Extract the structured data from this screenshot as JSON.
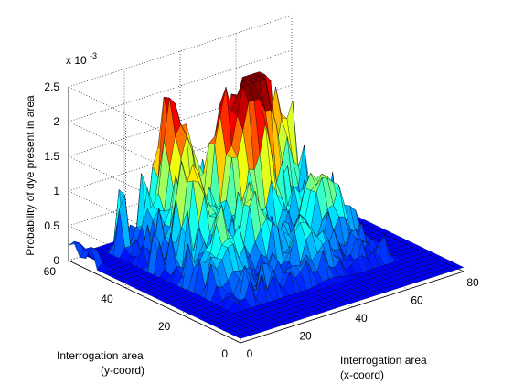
{
  "chart_data": {
    "type": "surface3d",
    "title": "",
    "zlabel": "Probability of dye present in area",
    "xlabel_line1": "Interrogation area",
    "xlabel_line2": "(x-coord)",
    "ylabel_line1": "Interrogation area",
    "ylabel_line2": "(y-coord)",
    "z_exponent_label": "x 10",
    "z_exponent_power": "-3",
    "xlim": [
      0,
      80
    ],
    "ylim": [
      0,
      60
    ],
    "zlim": [
      0,
      0.0025
    ],
    "x_ticks": [
      "0",
      "20",
      "40",
      "60",
      "80"
    ],
    "y_ticks": [
      "0",
      "20",
      "40",
      "60"
    ],
    "z_ticks": [
      "0",
      "0.5",
      "1",
      "1.5",
      "2",
      "2.5"
    ],
    "grid": true,
    "colormap": "jet",
    "surface_peaks_1e3": [
      {
        "x": 53,
        "y": 45,
        "z": 2.1
      },
      {
        "x": 47,
        "y": 42,
        "z": 1.9
      },
      {
        "x": 30,
        "y": 52,
        "z": 1.7
      },
      {
        "x": 40,
        "y": 45,
        "z": 1.4
      },
      {
        "x": 25,
        "y": 40,
        "z": 1.2
      },
      {
        "x": 60,
        "y": 30,
        "z": 1.0
      },
      {
        "x": 35,
        "y": 30,
        "z": 0.9
      },
      {
        "x": 20,
        "y": 25,
        "z": 0.7
      },
      {
        "x": 65,
        "y": 50,
        "z": 1.3
      },
      {
        "x": 45,
        "y": 20,
        "z": 0.6
      }
    ]
  }
}
